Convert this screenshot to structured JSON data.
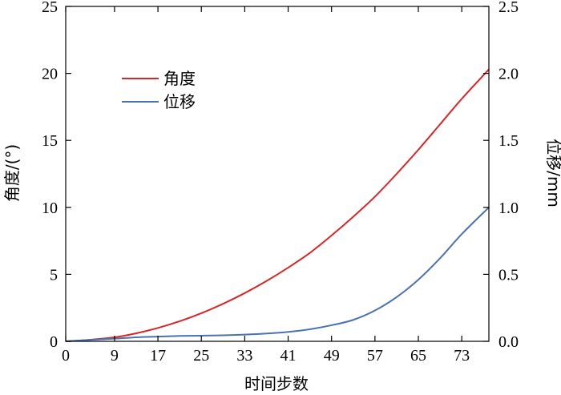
{
  "chart_data": {
    "type": "line",
    "title": "",
    "xlabel": "时间步数",
    "ylabel_left": "角度/(°)",
    "ylabel_right": "位移/mm",
    "xlim": [
      0,
      78
    ],
    "ylim_left": [
      0,
      25
    ],
    "ylim_right": [
      0,
      2.5
    ],
    "x_ticks": [
      0,
      9,
      17,
      25,
      33,
      41,
      49,
      57,
      65,
      73
    ],
    "y_left_ticks": [
      0,
      5,
      10,
      15,
      20,
      25
    ],
    "y_right_ticks": [
      0.0,
      0.5,
      1.0,
      1.5,
      2.0,
      2.5
    ],
    "y_right_tick_labels": [
      "0.0",
      "0.5",
      "1.0",
      "1.5",
      "2.0",
      "2.5"
    ],
    "grid": false,
    "legend_position": "top-left",
    "series": [
      {
        "name": "角度",
        "axis": "left",
        "color": "#d62728",
        "x": [
          0,
          4,
          9,
          13,
          17,
          21,
          25,
          29,
          33,
          37,
          41,
          45,
          49,
          53,
          57,
          61,
          65,
          69,
          73,
          78
        ],
        "y": [
          0,
          0.1,
          0.3,
          0.6,
          1.0,
          1.5,
          2.1,
          2.8,
          3.6,
          4.5,
          5.5,
          6.6,
          7.9,
          9.3,
          10.8,
          12.5,
          14.3,
          16.2,
          18.1,
          20.3
        ]
      },
      {
        "name": "位移",
        "axis": "right",
        "color": "#4a72b0",
        "x": [
          0,
          4,
          9,
          13,
          17,
          21,
          25,
          29,
          33,
          37,
          41,
          45,
          49,
          53,
          57,
          61,
          65,
          69,
          73,
          78
        ],
        "y": [
          0,
          0.01,
          0.02,
          0.03,
          0.035,
          0.04,
          0.042,
          0.045,
          0.05,
          0.058,
          0.07,
          0.09,
          0.12,
          0.16,
          0.23,
          0.33,
          0.46,
          0.62,
          0.8,
          1.0
        ]
      }
    ]
  }
}
